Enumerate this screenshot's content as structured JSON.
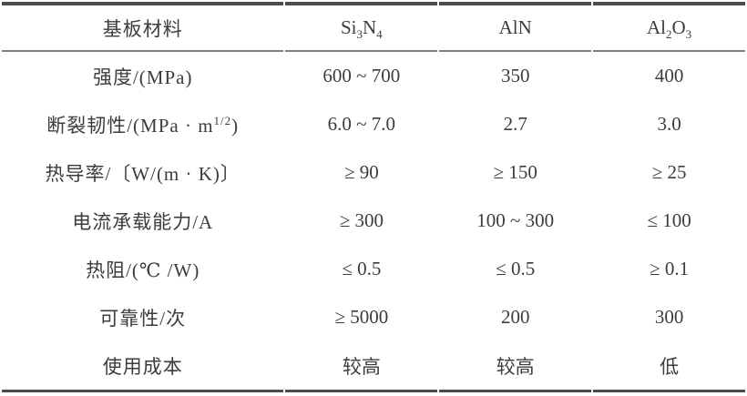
{
  "table": {
    "header": {
      "label": "基板材料",
      "materials": [
        {
          "b1": "Si",
          "s1": "3",
          "b2": "N",
          "s2": "4"
        },
        {
          "b1": "AlN",
          "s1": "",
          "b2": "",
          "s2": ""
        },
        {
          "b1": "Al",
          "s1": "2",
          "b2": "O",
          "s2": "3"
        }
      ]
    },
    "rows": [
      {
        "label": {
          "pre": "强度/(MPa)",
          "sup": "",
          "post": ""
        },
        "values": [
          "600 ~ 700",
          "350",
          "400"
        ]
      },
      {
        "label": {
          "pre": "断裂韧性/(MPa · m",
          "sup": "1/2",
          "post": ")"
        },
        "values": [
          "6.0 ~ 7.0",
          "2.7",
          "3.0"
        ]
      },
      {
        "label": {
          "pre": "热导率/〔W/(m · K)〕",
          "sup": "",
          "post": ""
        },
        "values": [
          "≥ 90",
          "≥ 150",
          "≥ 25"
        ]
      },
      {
        "label": {
          "pre": "电流承载能力/A",
          "sup": "",
          "post": ""
        },
        "values": [
          "≥ 300",
          "100 ~ 300",
          "≤ 100"
        ]
      },
      {
        "label": {
          "pre": "热阻/(℃ /W)",
          "sup": "",
          "post": ""
        },
        "values": [
          "≤ 0.5",
          "≤ 0.5",
          "≥ 0.1"
        ]
      },
      {
        "label": {
          "pre": "可靠性/次",
          "sup": "",
          "post": ""
        },
        "values": [
          "≥ 5000",
          "200",
          "300"
        ]
      },
      {
        "label": {
          "pre": "使用成本",
          "sup": "",
          "post": ""
        },
        "values": [
          "较高",
          "较高",
          "低"
        ]
      }
    ]
  },
  "colors": {
    "background": "#ffffff",
    "text": "#3c3c3c",
    "rule_heavy": "#4d4d4d",
    "rule_light": "#7e7e7e"
  }
}
